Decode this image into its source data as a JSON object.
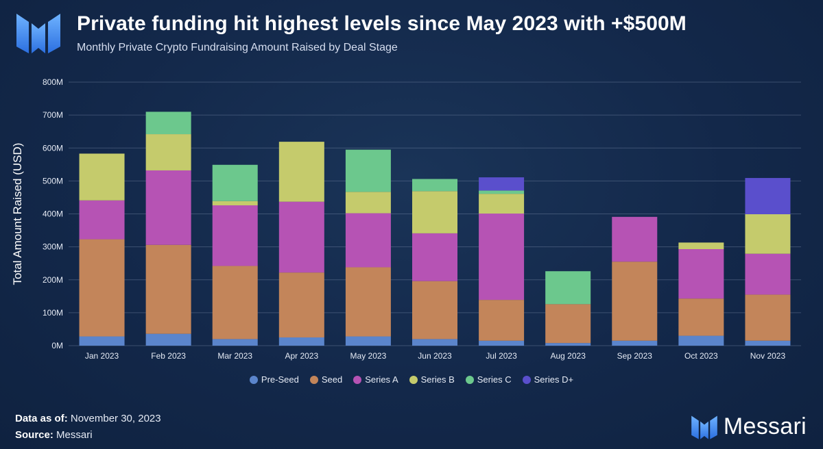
{
  "header": {
    "title": "Private funding hit highest levels since May 2023 with +$500M",
    "subtitle": "Monthly Private Crypto Fundraising Amount Raised by Deal Stage"
  },
  "footer": {
    "data_label": "Data as of:",
    "data_value": "November 30, 2023",
    "source_label": "Source:",
    "source_value": "Messari"
  },
  "brand": {
    "name": "Messari"
  },
  "colors": {
    "Pre-Seed": "#5b85cc",
    "Seed": "#c3855a",
    "Series A": "#b653b4",
    "Series B": "#c5cb6c",
    "Series C": "#6cc88d",
    "Series D+": "#5a4fcc"
  },
  "chart_data": {
    "type": "bar",
    "stacked": true,
    "title": "Monthly Private Crypto Fundraising Amount Raised by Deal Stage",
    "xlabel": "",
    "ylabel": "Total Amount Raised (USD)",
    "ylim": [
      0,
      800
    ],
    "yticks": [
      "0M",
      "100M",
      "200M",
      "300M",
      "400M",
      "500M",
      "600M",
      "700M",
      "800M"
    ],
    "grid": true,
    "legend_position": "bottom",
    "categories": [
      "Jan 2023",
      "Feb 2023",
      "Mar 2023",
      "Apr 2023",
      "May 2023",
      "Jun 2023",
      "Jul 2023",
      "Aug 2023",
      "Sep 2023",
      "Oct 2023",
      "Nov 2023"
    ],
    "series": [
      {
        "name": "Pre-Seed",
        "values": [
          28,
          36,
          20,
          25,
          28,
          20,
          15,
          8,
          15,
          30,
          15
        ]
      },
      {
        "name": "Seed",
        "values": [
          295,
          270,
          222,
          197,
          210,
          176,
          124,
          118,
          240,
          113,
          140
        ]
      },
      {
        "name": "Series A",
        "values": [
          118,
          226,
          184,
          215,
          164,
          145,
          262,
          0,
          136,
          150,
          124
        ]
      },
      {
        "name": "Series B",
        "values": [
          142,
          110,
          13,
          182,
          65,
          128,
          60,
          0,
          0,
          20,
          120
        ]
      },
      {
        "name": "Series C",
        "values": [
          0,
          68,
          110,
          0,
          128,
          37,
          10,
          100,
          0,
          0,
          0
        ]
      },
      {
        "name": "Series D+",
        "values": [
          0,
          0,
          0,
          0,
          0,
          0,
          40,
          0,
          0,
          0,
          110
        ]
      }
    ]
  }
}
